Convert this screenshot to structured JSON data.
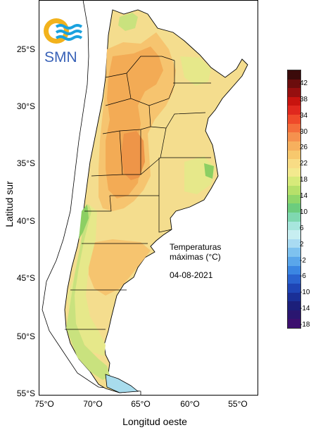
{
  "map": {
    "latitude_labels": [
      "25°S",
      "30°S",
      "35°S",
      "40°S",
      "45°S",
      "50°S",
      "55°S"
    ],
    "longitude_labels": [
      "75°O",
      "70°O",
      "65°O",
      "60°O",
      "55°O"
    ],
    "ylabel": "Latitud sur",
    "xlabel": "Longitud oeste"
  },
  "annotation": {
    "line1": "Temperaturas",
    "line2": "máximas (°C)",
    "date": "04-08-2021"
  },
  "logo": {
    "text": "SMN",
    "colors": {
      "sun": "#f2b21c",
      "waves": "#1aa2df",
      "text": "#3a63b8"
    }
  },
  "legend": {
    "ticks": [
      "42",
      "38",
      "34",
      "30",
      "26",
      "22",
      "18",
      "14",
      "10",
      "6",
      "2",
      "-2",
      "-6",
      "-10",
      "-14",
      "-18"
    ],
    "colors": [
      "#3b0a0a",
      "#6b0d0d",
      "#960f0f",
      "#c8140f",
      "#e0281e",
      "#ef4a2a",
      "#f46e3b",
      "#f5914e",
      "#f6b05e",
      "#f7c86d",
      "#f8dc85",
      "#f3e98e",
      "#d7ea7a",
      "#b6e06a",
      "#8fd66a",
      "#6ccc7e",
      "#7fd8b0",
      "#a7e6dd",
      "#c7eef1",
      "#a9dbf2",
      "#7ec2ef",
      "#5aa6ea",
      "#3b86e2",
      "#2a63cf",
      "#1f45b5",
      "#1a2f96",
      "#1c1f7a",
      "#2a1670",
      "#3c0f6e"
    ]
  },
  "field_colors": {
    "cool_green": "#8ccf63",
    "green_light": "#c9e27e",
    "yellow_green": "#e6e88a",
    "pale_yellow": "#f4dd8e",
    "light_orange": "#f6c46f",
    "orange": "#f3ab55",
    "dark_orange": "#ee9548",
    "light_blue": "#a8dced",
    "coast_white": "#ffffff"
  }
}
